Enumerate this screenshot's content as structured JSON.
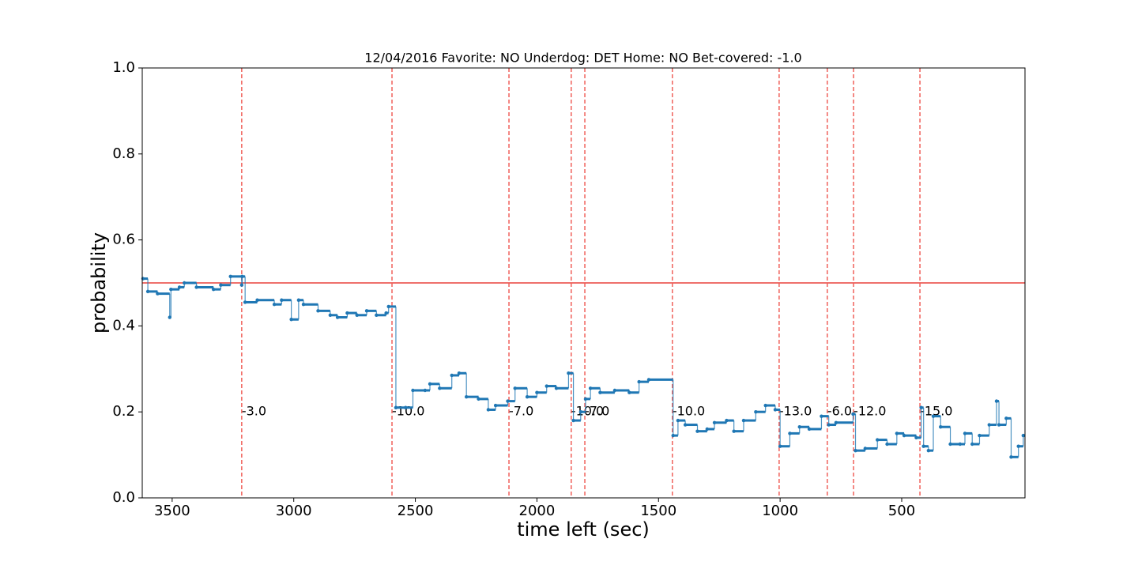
{
  "chart_data": {
    "type": "step",
    "title": "12/04/2016 Favorite: NO Underdog: DET Home: NO Bet-covered: -1.0",
    "x_label": "time left (sec)",
    "y_label": "probability",
    "xlim": [
      3623,
      -7
    ],
    "ylim": [
      0,
      1
    ],
    "xticks": [
      3500,
      3000,
      2500,
      2000,
      1500,
      1000,
      500
    ],
    "yticks": [
      {
        "value": 0,
        "label": "0.0"
      },
      0.2,
      0.4,
      0.6,
      0.8,
      {
        "value": 1,
        "label": "1.0"
      }
    ],
    "hline": {
      "value": 0.5,
      "color": "#e8403a"
    },
    "vline_color": "#f0605a",
    "vline_label_y": 0.2,
    "vlines": [
      {
        "x": 3214,
        "label": "-3.0"
      },
      {
        "x": 2596,
        "label": "-10.0"
      },
      {
        "x": 2115,
        "label": "-7.0"
      },
      {
        "x": 1859,
        "label": "-10.0"
      },
      {
        "x": 1803,
        "label": "-7.0"
      },
      {
        "x": 1443,
        "label": "-10.0"
      },
      {
        "x": 1004,
        "label": "-13.0"
      },
      {
        "x": 806,
        "label": "-6.0"
      },
      {
        "x": 698,
        "label": "-12.0"
      },
      {
        "x": 425,
        "label": "-15.0"
      }
    ],
    "series": [
      {
        "name": "probability",
        "color": "#1f77b4",
        "x": [
          3620,
          3600,
          3560,
          3510,
          3505,
          3470,
          3450,
          3400,
          3330,
          3300,
          3260,
          3214,
          3212,
          3200,
          3150,
          3080,
          3050,
          3010,
          2980,
          2960,
          2900,
          2850,
          2820,
          2780,
          2740,
          2700,
          2660,
          2620,
          2610,
          2580,
          2540,
          2510,
          2460,
          2440,
          2400,
          2350,
          2320,
          2290,
          2240,
          2200,
          2170,
          2120,
          2090,
          2040,
          2000,
          1960,
          1920,
          1870,
          1850,
          1820,
          1800,
          1780,
          1740,
          1680,
          1620,
          1580,
          1540,
          1440,
          1420,
          1390,
          1340,
          1300,
          1270,
          1220,
          1190,
          1150,
          1100,
          1060,
          1020,
          1000,
          960,
          920,
          880,
          830,
          800,
          770,
          700,
          690,
          650,
          600,
          560,
          520,
          490,
          440,
          420,
          410,
          390,
          370,
          340,
          300,
          260,
          240,
          210,
          180,
          140,
          110,
          100,
          70,
          50,
          20,
          0
        ],
        "values": [
          0.51,
          0.48,
          0.475,
          0.42,
          0.485,
          0.49,
          0.5,
          0.49,
          0.485,
          0.495,
          0.515,
          0.495,
          0.515,
          0.455,
          0.46,
          0.45,
          0.46,
          0.415,
          0.46,
          0.45,
          0.435,
          0.425,
          0.42,
          0.43,
          0.425,
          0.435,
          0.425,
          0.43,
          0.445,
          0.21,
          0.21,
          0.25,
          0.25,
          0.265,
          0.255,
          0.285,
          0.29,
          0.235,
          0.23,
          0.205,
          0.215,
          0.225,
          0.255,
          0.235,
          0.245,
          0.26,
          0.255,
          0.29,
          0.18,
          0.2,
          0.23,
          0.255,
          0.245,
          0.25,
          0.245,
          0.27,
          0.275,
          0.145,
          0.18,
          0.17,
          0.155,
          0.16,
          0.175,
          0.18,
          0.155,
          0.18,
          0.2,
          0.215,
          0.205,
          0.12,
          0.15,
          0.165,
          0.16,
          0.19,
          0.17,
          0.175,
          0.195,
          0.11,
          0.115,
          0.135,
          0.125,
          0.15,
          0.145,
          0.14,
          0.21,
          0.12,
          0.11,
          0.19,
          0.165,
          0.125,
          0.125,
          0.15,
          0.125,
          0.145,
          0.17,
          0.225,
          0.17,
          0.185,
          0.095,
          0.12,
          0.145
        ]
      }
    ]
  }
}
